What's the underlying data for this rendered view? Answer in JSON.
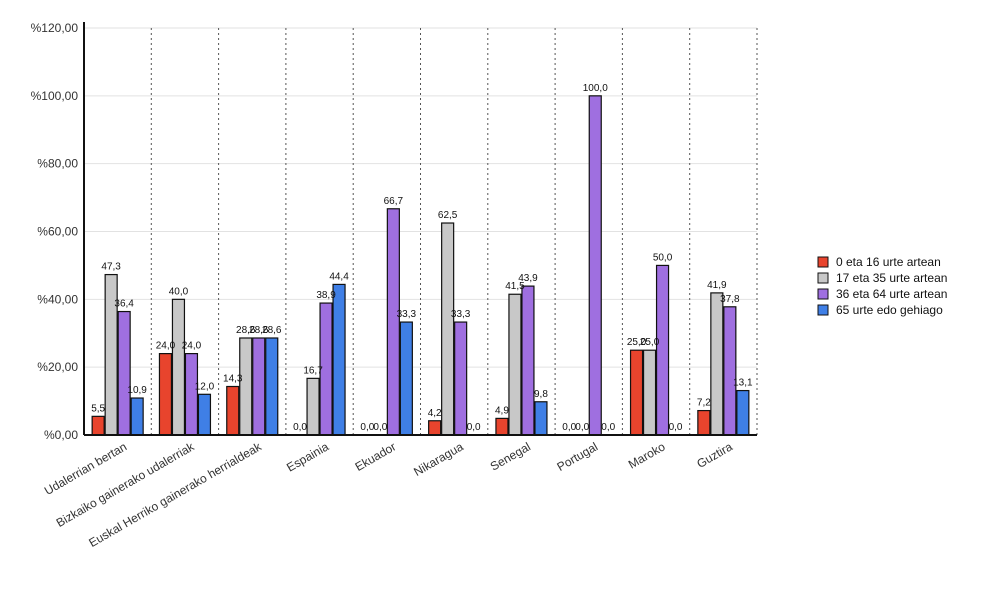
{
  "chart_data": {
    "type": "bar",
    "categories": [
      "Udalerrian bertan",
      "Bizkaiko gainerako udalerriak",
      "Euskal Herriko gainerako herrialdeak",
      "Espainia",
      "Ekuador",
      "Nikaragua",
      "Senegal",
      "Portugal",
      "Maroko",
      "Guztira"
    ],
    "series": [
      {
        "name": "0 eta 16 urte artean",
        "color": "#e8442d",
        "values": [
          5.5,
          24.0,
          14.3,
          0.0,
          0.0,
          4.2,
          4.9,
          0.0,
          25.0,
          7.2
        ],
        "labels": [
          "5,5",
          "24,0",
          "14,3",
          "0,0",
          "0,0",
          "4,2",
          "4,9",
          "0,0",
          "25,0",
          "7,2"
        ]
      },
      {
        "name": "17 eta 35 urte artean",
        "color": "#c8c8c8",
        "values": [
          47.3,
          40.0,
          28.6,
          16.7,
          0.0,
          62.5,
          41.5,
          0.0,
          25.0,
          41.9
        ],
        "labels": [
          "47,3",
          "40,0",
          "28,6",
          "16,7",
          "0,0",
          "62,5",
          "41,5",
          "0,0",
          "25,0",
          "41,9"
        ]
      },
      {
        "name": "36 eta 64 urte artean",
        "color": "#9f6fe0",
        "values": [
          36.4,
          24.0,
          28.6,
          38.9,
          66.7,
          33.3,
          43.9,
          100.0,
          50.0,
          37.8
        ],
        "labels": [
          "36,4",
          "24,0",
          "28,6",
          "38,9",
          "66,7",
          "33,3",
          "43,9",
          "100,0",
          "50,0",
          "37,8"
        ]
      },
      {
        "name": "65 urte edo gehiago",
        "color": "#3f7fe6",
        "values": [
          10.9,
          12.0,
          28.6,
          44.4,
          33.3,
          0.0,
          9.8,
          0.0,
          0.0,
          13.1
        ],
        "labels": [
          "10,9",
          "12,0",
          "28,6",
          "44,4",
          "33,3",
          "0,0",
          "9,8",
          "0,0",
          "0,0",
          "13,1"
        ]
      }
    ],
    "y_ticks": [
      0,
      20,
      40,
      60,
      80,
      100,
      120
    ],
    "y_tick_labels": [
      "%0,00",
      "%20,00",
      "%40,00",
      "%60,00",
      "%80,00",
      "%100,00",
      "%120,00"
    ],
    "ylim": [
      0,
      120
    ],
    "grid": true,
    "legend_position": "right"
  }
}
